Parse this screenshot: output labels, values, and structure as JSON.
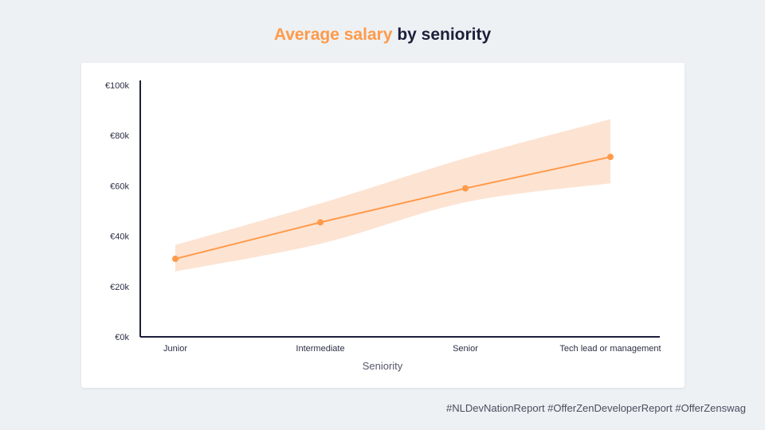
{
  "header": {
    "title_accent": "Average salary",
    "title_rest": " by seniority"
  },
  "footer": {
    "hashtags": "#NLDevNationReport #OfferZenDeveloperReport #OfferZenswag"
  },
  "colors": {
    "accent": "#ff9a4a",
    "band": "#fde3d2",
    "axis": "#1c1f3a"
  },
  "chart_data": {
    "type": "line",
    "title": "Average salary by seniority",
    "xlabel": "Seniority",
    "ylabel": "",
    "categories": [
      "Junior",
      "Intermediate",
      "Senior",
      "Tech lead or management"
    ],
    "y_ticks": [
      "€0k",
      "€20k",
      "€40k",
      "€60k",
      "€80k",
      "€100k"
    ],
    "ylim": [
      0,
      100000
    ],
    "series": [
      {
        "name": "Average salary",
        "values": [
          31000,
          45500,
          59000,
          71500
        ]
      }
    ],
    "range_band": {
      "lower": [
        26000,
        37000,
        53500,
        61000
      ],
      "upper": [
        36500,
        53000,
        71000,
        86500
      ]
    },
    "grid": false
  }
}
